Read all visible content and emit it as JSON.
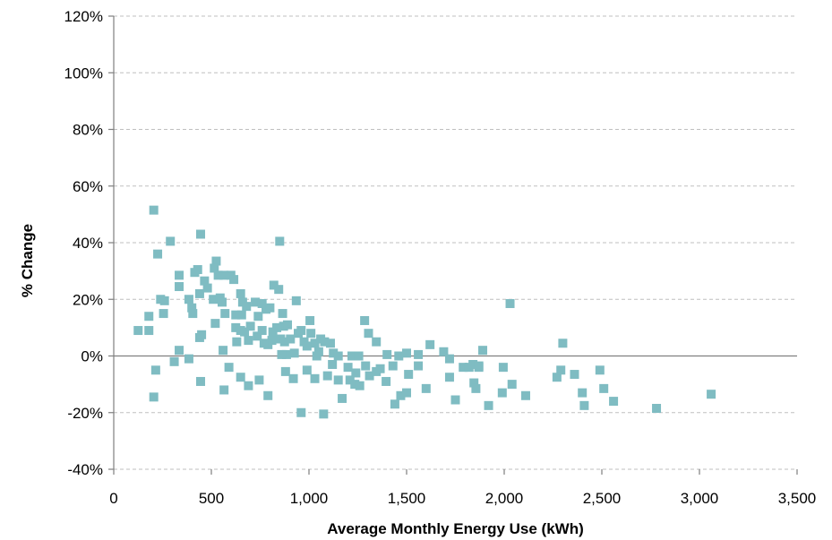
{
  "chart_data": {
    "type": "scatter",
    "title": "",
    "xlabel": "Average Monthly Energy Use (kWh)",
    "ylabel": "% Change",
    "xlim": [
      0,
      3500
    ],
    "ylim": [
      -40,
      120
    ],
    "x_ticks": [
      0,
      500,
      1000,
      1500,
      2000,
      2500,
      3000,
      3500
    ],
    "x_tick_labels": [
      "0",
      "500",
      "1,000",
      "1,500",
      "2,000",
      "2,500",
      "3,000",
      "3,500"
    ],
    "y_ticks": [
      -40,
      -20,
      0,
      20,
      40,
      60,
      80,
      100,
      120
    ],
    "y_tick_labels": [
      "-40%",
      "-20%",
      "0%",
      "20%",
      "40%",
      "60%",
      "80%",
      "100%",
      "120%"
    ],
    "grid": true,
    "legend": "none",
    "marker_color": "#7fbcc2",
    "series": [
      {
        "points": [
          [
            205,
            51.5
          ],
          [
            290,
            40.5
          ],
          [
            445,
            43
          ],
          [
            225,
            36
          ],
          [
            850,
            40.5
          ],
          [
            125,
            9
          ],
          [
            180,
            14
          ],
          [
            180,
            9
          ],
          [
            240,
            20
          ],
          [
            260,
            19.5
          ],
          [
            255,
            15
          ],
          [
            335,
            28.5
          ],
          [
            335,
            24.5
          ],
          [
            385,
            20
          ],
          [
            400,
            17
          ],
          [
            405,
            15
          ],
          [
            415,
            29.5
          ],
          [
            430,
            30.5
          ],
          [
            440,
            22
          ],
          [
            465,
            26.5
          ],
          [
            480,
            24
          ],
          [
            525,
            33.5
          ],
          [
            515,
            31
          ],
          [
            535,
            28.5
          ],
          [
            565,
            28.5
          ],
          [
            600,
            28.5
          ],
          [
            615,
            27
          ],
          [
            510,
            20
          ],
          [
            545,
            20.5
          ],
          [
            555,
            19
          ],
          [
            520,
            11.5
          ],
          [
            570,
            15
          ],
          [
            625,
            14.5
          ],
          [
            650,
            22
          ],
          [
            660,
            19
          ],
          [
            655,
            14.5
          ],
          [
            680,
            17.5
          ],
          [
            625,
            10
          ],
          [
            650,
            9
          ],
          [
            670,
            8.5
          ],
          [
            700,
            10.5
          ],
          [
            725,
            19
          ],
          [
            740,
            14
          ],
          [
            760,
            18.5
          ],
          [
            735,
            7
          ],
          [
            690,
            5.5
          ],
          [
            630,
            5
          ],
          [
            760,
            9
          ],
          [
            780,
            16.5
          ],
          [
            800,
            17
          ],
          [
            820,
            25
          ],
          [
            845,
            23.5
          ],
          [
            865,
            15
          ],
          [
            870,
            10.5
          ],
          [
            835,
            10
          ],
          [
            815,
            8.5
          ],
          [
            810,
            5.5
          ],
          [
            790,
            4
          ],
          [
            770,
            4.5
          ],
          [
            855,
            6
          ],
          [
            875,
            5
          ],
          [
            890,
            11
          ],
          [
            905,
            6
          ],
          [
            935,
            19.5
          ],
          [
            945,
            8
          ],
          [
            960,
            9
          ],
          [
            975,
            5
          ],
          [
            1005,
            12.5
          ],
          [
            1010,
            8
          ],
          [
            1030,
            4.5
          ],
          [
            1060,
            6
          ],
          [
            1080,
            5
          ],
          [
            1110,
            4.5
          ],
          [
            1050,
            1.5
          ],
          [
            990,
            3.5
          ],
          [
            925,
            1
          ],
          [
            885,
            0.5
          ],
          [
            860,
            0.5
          ],
          [
            1040,
            0
          ],
          [
            1125,
            1
          ],
          [
            1150,
            0
          ],
          [
            1220,
            0
          ],
          [
            1255,
            0
          ],
          [
            1285,
            12.5
          ],
          [
            1305,
            8
          ],
          [
            1345,
            5
          ],
          [
            1400,
            0.5
          ],
          [
            1460,
            0
          ],
          [
            1500,
            1
          ],
          [
            1560,
            0.5
          ],
          [
            1620,
            4
          ],
          [
            1690,
            1.5
          ],
          [
            1720,
            -1
          ],
          [
            1870,
            -4
          ],
          [
            1890,
            2
          ],
          [
            2030,
            18.5
          ],
          [
            2300,
            4.5
          ],
          [
            385,
            -1
          ],
          [
            440,
            6.5
          ],
          [
            450,
            7.5
          ],
          [
            560,
            2
          ],
          [
            310,
            -2
          ],
          [
            335,
            2
          ],
          [
            215,
            -5
          ],
          [
            205,
            -14.5
          ],
          [
            445,
            -9
          ],
          [
            565,
            -12
          ],
          [
            590,
            -4
          ],
          [
            650,
            -7.5
          ],
          [
            690,
            -10.5
          ],
          [
            745,
            -8.5
          ],
          [
            790,
            -14
          ],
          [
            880,
            -5.5
          ],
          [
            920,
            -8
          ],
          [
            960,
            -20
          ],
          [
            990,
            -5
          ],
          [
            1030,
            -8
          ],
          [
            1075,
            -20.5
          ],
          [
            1095,
            -7
          ],
          [
            1120,
            -3
          ],
          [
            1150,
            -8.5
          ],
          [
            1170,
            -15
          ],
          [
            1200,
            -4
          ],
          [
            1210,
            -8.5
          ],
          [
            1235,
            -10
          ],
          [
            1240,
            -6
          ],
          [
            1260,
            -10.5
          ],
          [
            1290,
            -3.5
          ],
          [
            1310,
            -7
          ],
          [
            1345,
            -5.5
          ],
          [
            1365,
            -4.5
          ],
          [
            1395,
            -9
          ],
          [
            1430,
            -3.5
          ],
          [
            1440,
            -17
          ],
          [
            1470,
            -14
          ],
          [
            1500,
            -13
          ],
          [
            1510,
            -6.5
          ],
          [
            1560,
            -3.5
          ],
          [
            1600,
            -11.5
          ],
          [
            1720,
            -7.5
          ],
          [
            1750,
            -15.5
          ],
          [
            1790,
            -4
          ],
          [
            1820,
            -4
          ],
          [
            1840,
            -3
          ],
          [
            1845,
            -9.5
          ],
          [
            1855,
            -11.5
          ],
          [
            1870,
            -3.5
          ],
          [
            1920,
            -17.5
          ],
          [
            1990,
            -13
          ],
          [
            1995,
            -4
          ],
          [
            2040,
            -10
          ],
          [
            2110,
            -14
          ],
          [
            2270,
            -7.5
          ],
          [
            2290,
            -5
          ],
          [
            2360,
            -6.5
          ],
          [
            2400,
            -13
          ],
          [
            2410,
            -17.5
          ],
          [
            2490,
            -5
          ],
          [
            2510,
            -11.5
          ],
          [
            2560,
            -16
          ],
          [
            2780,
            -18.5
          ],
          [
            3060,
            -13.5
          ]
        ]
      }
    ]
  }
}
